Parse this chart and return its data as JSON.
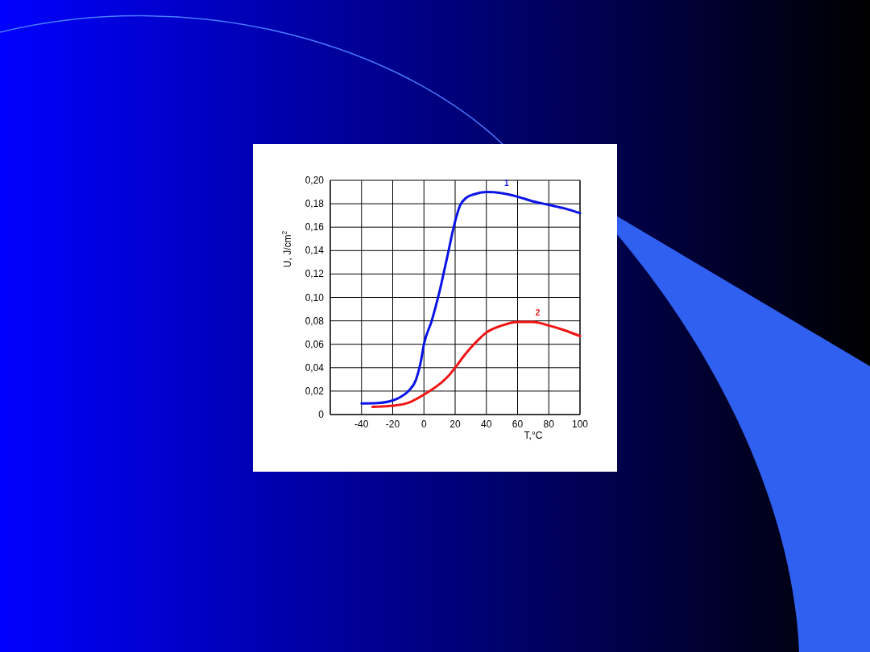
{
  "chart_data": {
    "type": "line",
    "xlabel": "T,°C",
    "ylabel": "U, J/cm$^{2}$",
    "xlim": [
      -60,
      100
    ],
    "xticks": [
      {
        "value": -60,
        "label": null
      },
      -40,
      -20,
      0,
      20,
      40,
      60,
      80,
      100
    ],
    "ylim": [
      0,
      0.2
    ],
    "yticks": [
      0,
      {
        "value": 0.02,
        "label": "0,02"
      },
      {
        "value": 0.04,
        "label": "0,04"
      },
      {
        "value": 0.06,
        "label": "0,06"
      },
      {
        "value": 0.08,
        "label": "0,08"
      },
      {
        "value": 0.1,
        "label": "0,10"
      },
      {
        "value": 0.12,
        "label": "0,12"
      },
      {
        "value": 0.14,
        "label": "0,14"
      },
      {
        "value": 0.16,
        "label": "0,16"
      },
      {
        "value": 0.18,
        "label": "0,18"
      },
      {
        "value": 0.2,
        "label": "0,20"
      }
    ],
    "grid": true,
    "marker": "none",
    "line_style": "solid",
    "series": [
      {
        "name": "1",
        "color": "#0a14e6",
        "x": [
          -40,
          -30,
          -20,
          -15,
          -10,
          -5,
          -2,
          0,
          5,
          10,
          15,
          20,
          23,
          27,
          32,
          40,
          50,
          60,
          70,
          80,
          90,
          100
        ],
        "values": [
          0.0095,
          0.0098,
          0.012,
          0.015,
          0.02,
          0.03,
          0.045,
          0.06,
          0.08,
          0.105,
          0.135,
          0.165,
          0.178,
          0.185,
          0.188,
          0.19,
          0.189,
          0.186,
          0.182,
          0.179,
          0.176,
          0.172
        ]
      },
      {
        "name": "2",
        "color": "#f01414",
        "x": [
          -33,
          -25,
          -20,
          -10,
          0,
          10,
          15,
          20,
          25,
          30,
          35,
          40,
          50,
          60,
          70,
          80,
          90,
          100
        ],
        "values": [
          0.0065,
          0.007,
          0.0075,
          0.01,
          0.017,
          0.026,
          0.032,
          0.04,
          0.049,
          0.057,
          0.064,
          0.07,
          0.076,
          0.079,
          0.079,
          0.076,
          0.072,
          0.067
        ]
      }
    ]
  }
}
